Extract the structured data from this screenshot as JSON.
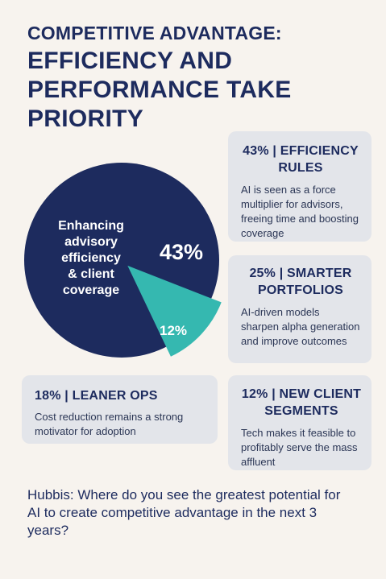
{
  "header": {
    "title": "COMPETITIVE ADVANTAGE:",
    "subtitle": "EFFICIENCY AND PERFORMANCE TAKE PRIORITY"
  },
  "cards": {
    "efficiency": {
      "title": "43% | EFFICIENCY RULES",
      "text": "AI is seen as a force multiplier for advisors, freeing time and boosting coverage"
    },
    "portfolios": {
      "title": "25% | SMARTER PORTFOLIOS",
      "text": "AI-driven models sharpen alpha generation and improve outcomes"
    },
    "lean_ops": {
      "title": "18% | LEANER OPS",
      "text": "Cost reduction remains a strong motivator for adoption"
    },
    "new_segments": {
      "title": "12% | NEW CLIENT SEGMENTS",
      "text": "Tech makes it feasible to profitably serve the mass affluent"
    }
  },
  "question": "Hubbis: Where do you see the greatest potential for AI to create competitive advantage in the next 3 years?",
  "chart_data": {
    "type": "pie",
    "slices": [
      {
        "label": "Enhancing advisory efficiency & client coverage",
        "value": 43,
        "value_label": "43%",
        "color": "#1d2b5e"
      },
      {
        "label": "",
        "value": 12,
        "value_label": "12%",
        "color": "#35b8b0",
        "exploded": true
      }
    ]
  },
  "colors": {
    "navy": "#1d2b5e",
    "teal": "#35b8b0",
    "card": "#e3e5ea",
    "background": "#f7f3ee"
  }
}
